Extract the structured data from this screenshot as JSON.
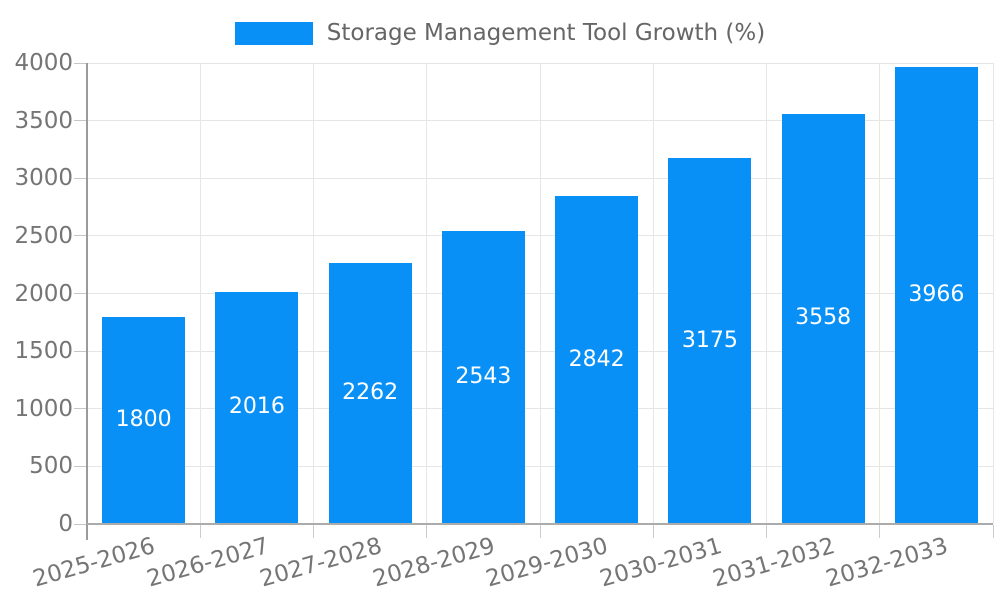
{
  "chart_data": {
    "type": "bar",
    "title": "",
    "series_name": "Storage Management Tool Growth (%)",
    "categories": [
      "2025-2026",
      "2026-2027",
      "2027-2028",
      "2028-2029",
      "2029-2030",
      "2030-2031",
      "2031-2032",
      "2032-2033"
    ],
    "values": [
      1800,
      2016,
      2262,
      2543,
      2842,
      3175,
      3558,
      3966
    ],
    "yticks": [
      0,
      500,
      1000,
      1500,
      2000,
      2500,
      3000,
      3500,
      4000
    ],
    "ylim": [
      0,
      4000
    ],
    "xlabel": "",
    "ylabel": "",
    "grid": true,
    "legend_position": "top-center",
    "colors": {
      "bar": "#0890f6",
      "bar_value_label": "#ffffff",
      "axis_text": "#757575",
      "legend_text": "#666666",
      "gridline": "#e6e6e6",
      "axis_line": "#ababab"
    }
  }
}
